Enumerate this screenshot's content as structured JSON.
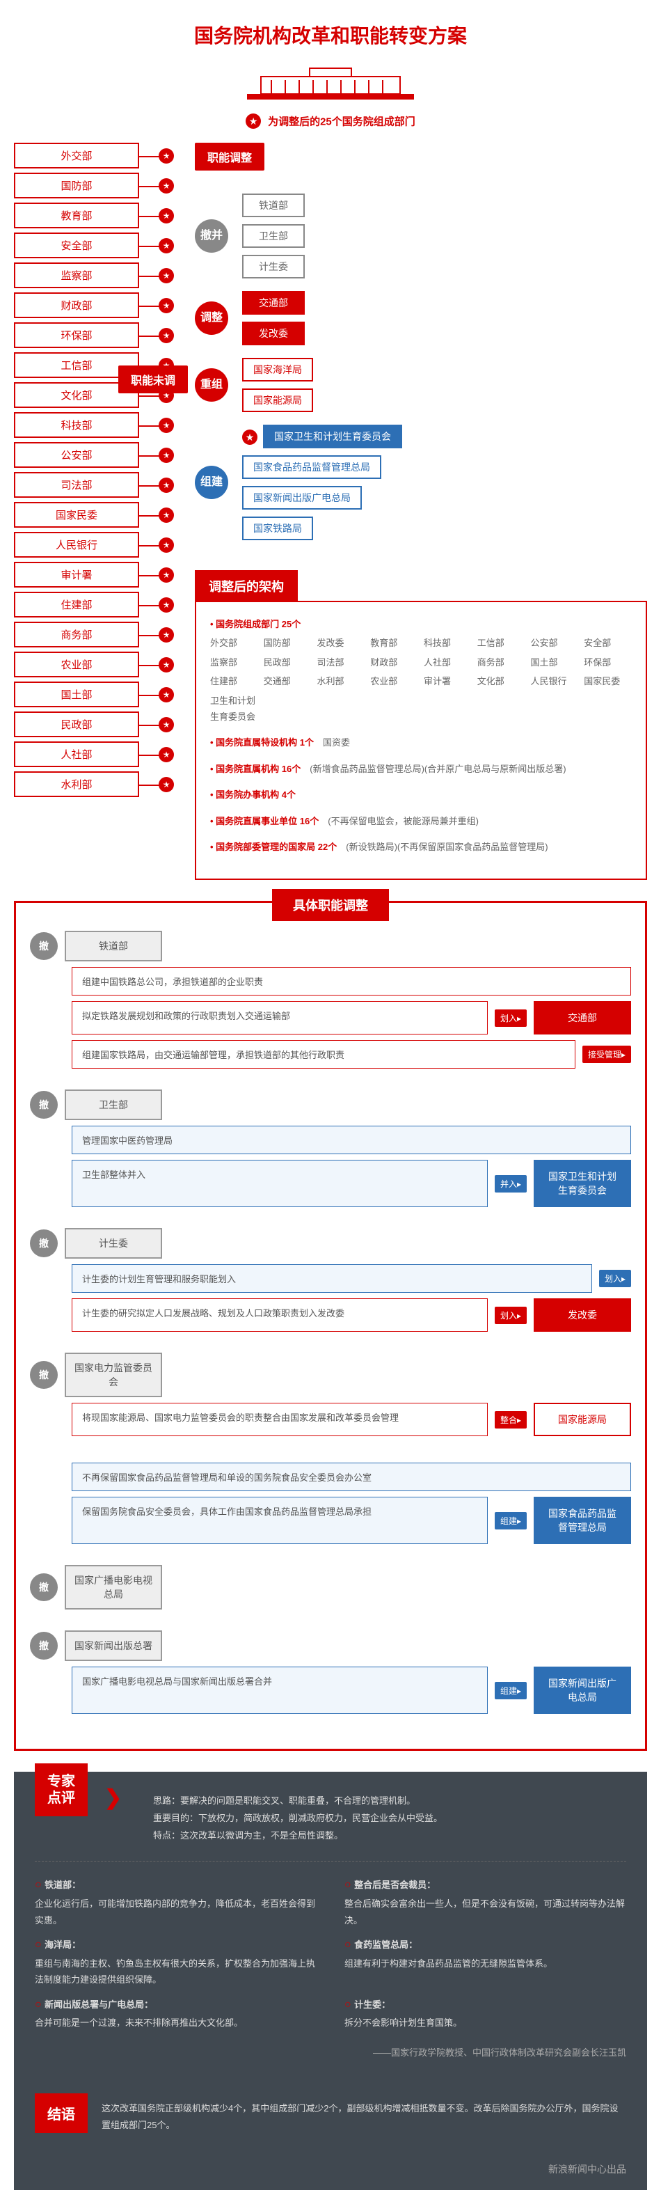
{
  "title": "国务院机构改革和职能转变方案",
  "subtitle": "为调整后的25个国务院组成部门",
  "building_color": "#d50000",
  "colors": {
    "red": "#d50000",
    "blue": "#2d6fb5",
    "gray": "#888888",
    "dark": "#404850"
  },
  "unchanged_label": "职能未调",
  "unchanged_depts": [
    "外交部",
    "国防部",
    "教育部",
    "安全部",
    "监察部",
    "财政部",
    "环保部",
    "工信部",
    "文化部",
    "科技部",
    "公安部",
    "司法部",
    "国家民委",
    "人民银行",
    "审计署",
    "住建部",
    "商务部",
    "农业部",
    "国土部",
    "民政部",
    "人社部",
    "水利部"
  ],
  "adjust_label": "职能调整",
  "adjust_groups": [
    {
      "node": "撤并",
      "style": "gray",
      "items": [
        {
          "t": "铁道部",
          "s": "gray"
        },
        {
          "t": "卫生部",
          "s": "gray"
        },
        {
          "t": "计生委",
          "s": "gray"
        }
      ]
    },
    {
      "node": "调整",
      "style": "red",
      "items": [
        {
          "t": "交通部",
          "s": "red"
        },
        {
          "t": "发改委",
          "s": "red"
        }
      ]
    },
    {
      "node": "重组",
      "style": "red",
      "items": [
        {
          "t": "国家海洋局",
          "s": "red-outline"
        },
        {
          "t": "国家能源局",
          "s": "red-outline"
        }
      ]
    },
    {
      "node": "组建",
      "style": "blue",
      "items": [
        {
          "t": "国家卫生和计划生育委员会",
          "s": "blue",
          "star": true
        },
        {
          "t": "国家食品药品监督管理总局",
          "s": "blue-outline"
        },
        {
          "t": "国家新闻出版广电总局",
          "s": "blue-outline"
        },
        {
          "t": "国家铁路局",
          "s": "blue-outline"
        }
      ]
    }
  ],
  "structure_header": "调整后的架构",
  "structure": [
    {
      "head": "国务院组成部门 25个",
      "grid": [
        "外交部",
        "国防部",
        "发改委",
        "教育部",
        "科技部",
        "工信部",
        "公安部",
        "安全部",
        "监察部",
        "民政部",
        "司法部",
        "财政部",
        "人社部",
        "商务部",
        "国土部",
        "环保部",
        "住建部",
        "交通部",
        "水利部",
        "农业部",
        "审计署",
        "文化部",
        "人民银行",
        "国家民委",
        "卫生和计划生育委员会"
      ]
    },
    {
      "head": "国务院直属特设机构 1个",
      "tail": "国资委"
    },
    {
      "head": "国务院直属机构 16个",
      "tail": "(新增食品药品监督管理总局)(合并原广电总局与原新闻出版总署)"
    },
    {
      "head": "国务院办事机构 4个"
    },
    {
      "head": "国务院直属事业单位 16个",
      "tail": "(不再保留电监会，被能源局兼并重组)"
    },
    {
      "head": "国务院部委管理的国家局 22个",
      "tail": "(新设铁路局)(不再保留原国家食品药品监督管理局)"
    }
  ],
  "detail_header": "具体职能调整",
  "details": [
    {
      "abolish": "撤",
      "src": "铁道部",
      "rows": [
        {
          "desc": "组建中国铁路总公司，承担铁道部的企业职责",
          "style": "red"
        },
        {
          "desc": "拟定铁路发展规划和政策的行政职责划入交通运输部",
          "action": "划入",
          "target": "交通部",
          "tstyle": "red",
          "style": "red"
        },
        {
          "desc": "组建国家铁路局，由交通运输部管理，承担铁道部的其他行政职责",
          "action": "接受管理",
          "style": "red"
        }
      ]
    },
    {
      "abolish": "撤",
      "src": "卫生部",
      "rows": [
        {
          "desc": "管理国家中医药管理局",
          "style": "blue"
        },
        {
          "desc": "卫生部整体并入",
          "action": "并入",
          "target": "国家卫生和计划生育委员会",
          "tstyle": "blue",
          "style": "blue"
        }
      ]
    },
    {
      "abolish": "撤",
      "src": "计生委",
      "rows": [
        {
          "desc": "计生委的计划生育管理和服务职能划入",
          "action": "划入",
          "style": "blue"
        },
        {
          "desc": "计生委的研究拟定人口发展战略、规划及人口政策职责划入发改委",
          "action": "划入",
          "target": "发改委",
          "tstyle": "red",
          "style": "red"
        }
      ]
    },
    {
      "abolish": "撤",
      "src": "国家电力监管委员会",
      "rows": [
        {
          "desc": "将现国家能源局、国家电力监管委员会的职责整合由国家发展和改革委员会管理",
          "action": "整合",
          "target": "国家能源局",
          "tstyle": "outline",
          "style": "red",
          "pre": "管理"
        }
      ]
    },
    {
      "src": "",
      "rows": [
        {
          "desc": "不再保留国家食品药品监督管理局和单设的国务院食品安全委员会办公室",
          "style": "blue"
        },
        {
          "desc": "保留国务院食品安全委员会，具体工作由国家食品药品监督管理总局承担",
          "action": "组建",
          "target": "国家食品药品监督管理总局",
          "tstyle": "blue",
          "style": "blue"
        }
      ]
    },
    {
      "abolish": "撤",
      "src": "国家广播电影电视总局",
      "rows": []
    },
    {
      "abolish": "撤",
      "src": "国家新闻出版总署",
      "rows": [
        {
          "desc": "国家广播电影电视总局与国家新闻出版总署合并",
          "action": "组建",
          "target": "国家新闻出版广电总局",
          "tstyle": "blue",
          "style": "blue"
        }
      ]
    }
  ],
  "expert_label": "专家\n点评",
  "expert_summary": [
    "思路：要解决的问题是职能交叉、职能重叠，不合理的管理机制。",
    "重要目的：下放权力，简政放权，削减政府权力，民营企业会从中受益。",
    "特点：这次改革以微调为主，不是全局性调整。"
  ],
  "expert_items": [
    {
      "h": "铁道部：",
      "t": "企业化运行后，可能增加铁路内部的竞争力，降低成本，老百姓会得到实惠。"
    },
    {
      "h": "整合后是否会裁员：",
      "t": "整合后确实会富余出一些人，但是不会没有饭碗，可通过转岗等办法解决。"
    },
    {
      "h": "海洋局：",
      "t": "重组与南海的主权、钓鱼岛主权有很大的关系，扩权整合为加强海上执法制度能力建设提供组织保障。"
    },
    {
      "h": "食药监管总局：",
      "t": "组建有利于构建对食品药品监管的无缝隙监管体系。"
    },
    {
      "h": "新闻出版总署与广电总局：",
      "t": "合并可能是一个过渡，未来不排除再推出大文化部。"
    },
    {
      "h": "计生委：",
      "t": "拆分不会影响计划生育国策。"
    }
  ],
  "expert_attrib": "——国家行政学院教授、中国行政体制改革研究会副会长汪玉凯",
  "conclusion_label": "结语",
  "conclusion": "这次改革国务院正部级机构减少4个，其中组成部门减少2个，副部级机构增减相抵数量不变。改革后除国务院办公厅外，国务院设置组成部门25个。",
  "footer": "新浪新闻中心出品"
}
